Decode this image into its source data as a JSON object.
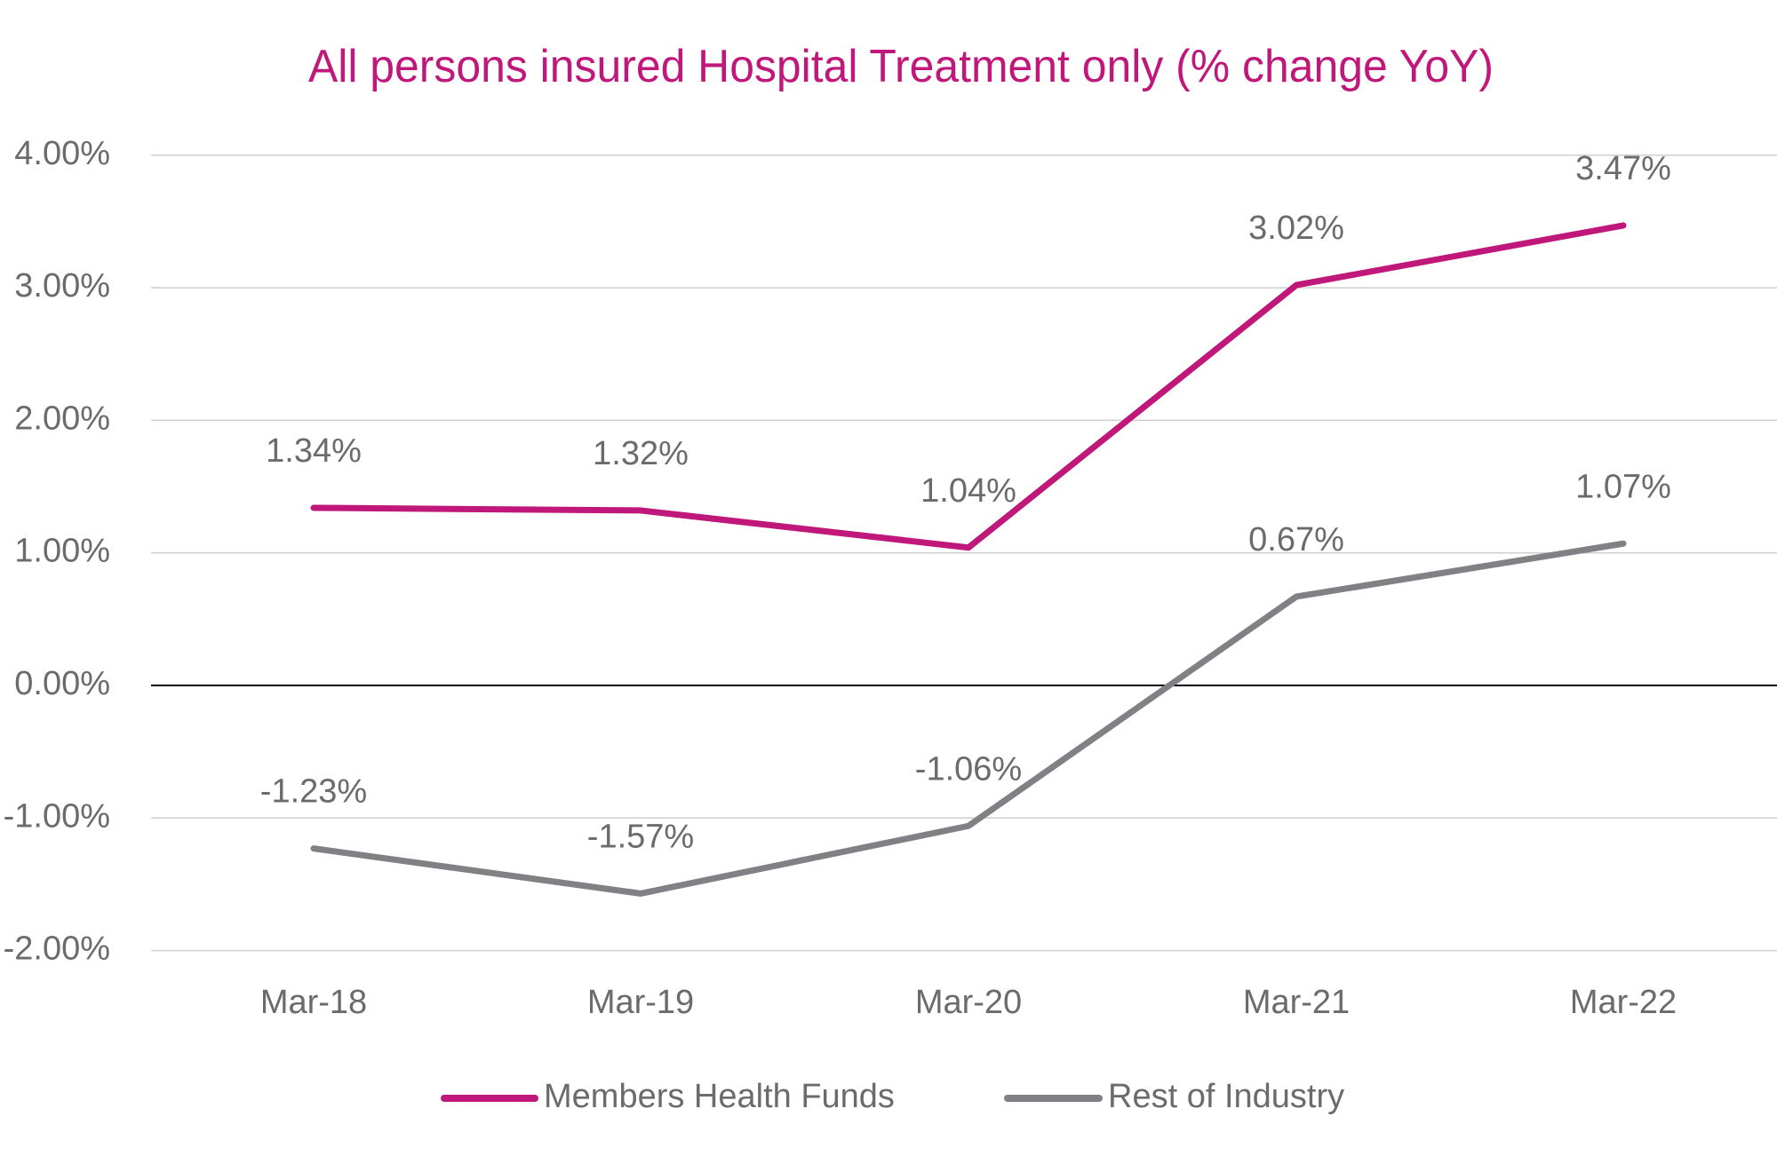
{
  "chart_data": {
    "type": "line",
    "title": "All persons insured Hospital Treatment only (% change YoY)",
    "xlabel": "",
    "ylabel": "",
    "categories": [
      "Mar-18",
      "Mar-19",
      "Mar-20",
      "Mar-21",
      "Mar-22"
    ],
    "ylim": [
      -2,
      4
    ],
    "yticks": [
      4,
      3,
      2,
      1,
      0,
      -1,
      -2
    ],
    "ytick_labels": [
      "4.00%",
      "3.00%",
      "2.00%",
      "1.00%",
      "0.00%",
      "-1.00%",
      "-2.00%"
    ],
    "grid": true,
    "legend_position": "bottom",
    "title_color": "#C0177A",
    "series": [
      {
        "name": "Members Health Funds",
        "color": "#C0177A",
        "values": [
          1.34,
          1.32,
          1.04,
          3.02,
          3.47
        ],
        "labels": [
          "1.34%",
          "1.32%",
          "1.04%",
          "3.02%",
          "3.47%"
        ]
      },
      {
        "name": "Rest of Industry",
        "color": "#808085",
        "values": [
          -1.23,
          -1.57,
          -1.06,
          0.67,
          1.07
        ],
        "labels": [
          "-1.23%",
          "-1.57%",
          "-1.06%",
          "0.67%",
          "1.07%"
        ]
      }
    ]
  }
}
